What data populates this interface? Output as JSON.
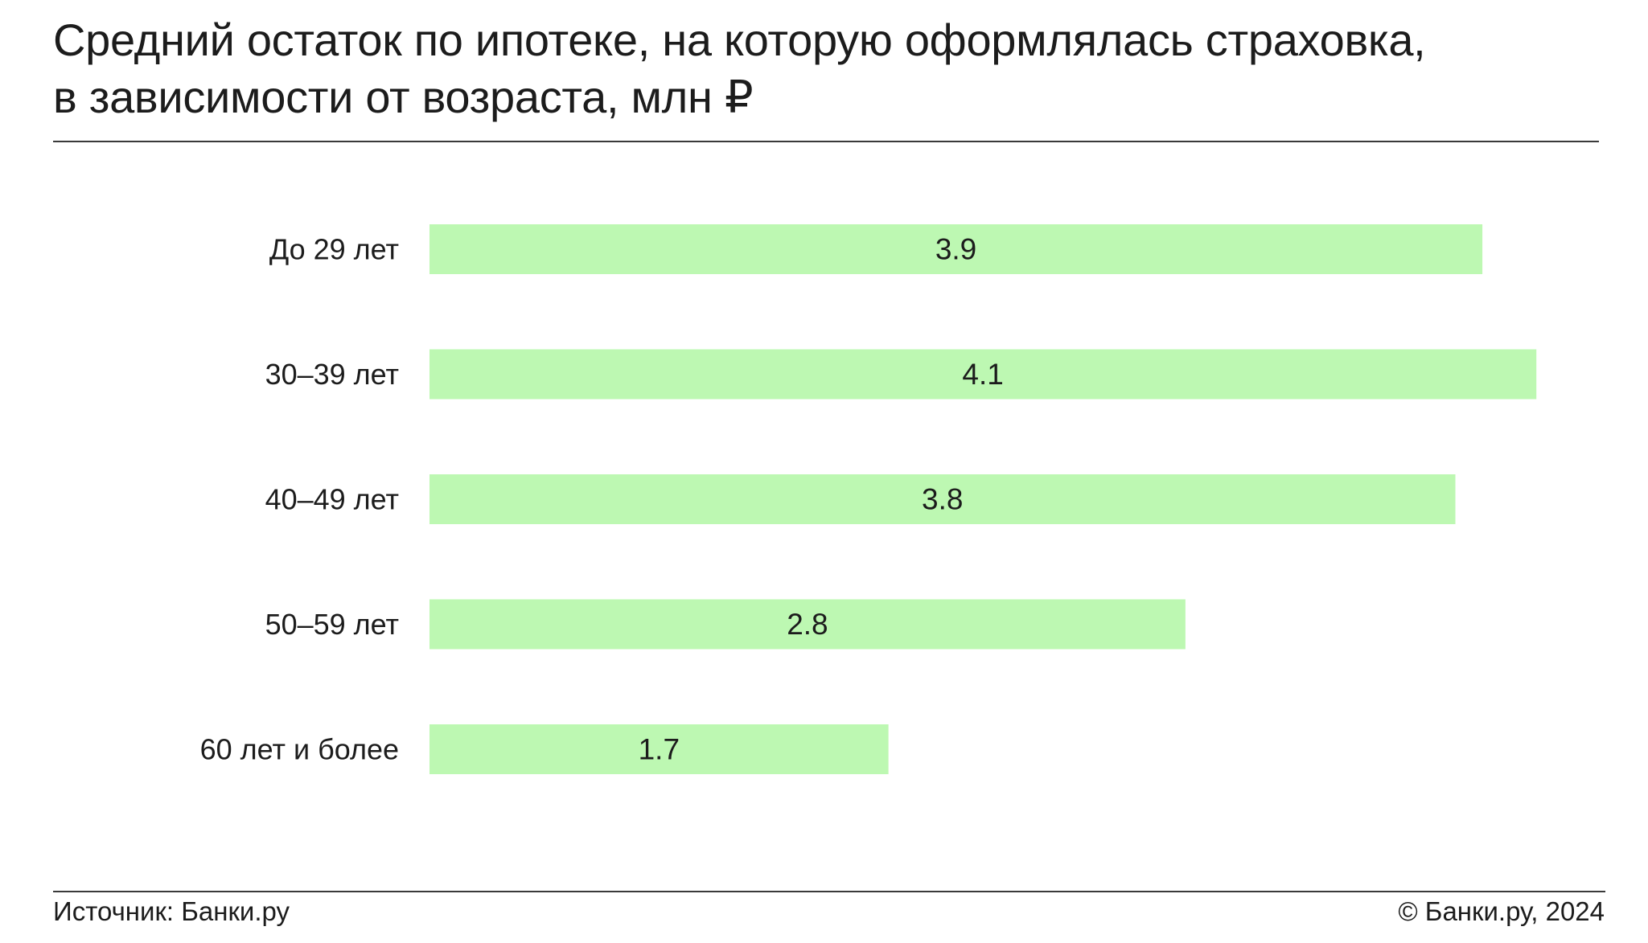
{
  "title_line1": "Средний остаток по ипотеке, на которую оформлялась страховка,",
  "title_line2": "в зависимости от возраста, млн ₽",
  "footer": {
    "source": "Источник: Банки.ру",
    "copyright": "© Банки.ру, 2024"
  },
  "colors": {
    "bar": "#bdf8b2",
    "text": "#1c1c1c",
    "rule": "#3a3a3a"
  },
  "chart_data": {
    "type": "bar",
    "orientation": "horizontal",
    "title": "Средний остаток по ипотеке, на которую оформлялась страховка, в зависимости от возраста, млн ₽",
    "categories": [
      "До 29 лет",
      "30–39 лет",
      "40–49 лет",
      "50–59 лет",
      "60 лет и более"
    ],
    "values": [
      3.9,
      4.1,
      3.8,
      2.8,
      1.7
    ],
    "data_labels": [
      "3.9",
      "4.1",
      "3.8",
      "2.8",
      "1.7"
    ],
    "xlim": [
      0,
      4.15
    ],
    "grid": false,
    "legend": "none"
  }
}
